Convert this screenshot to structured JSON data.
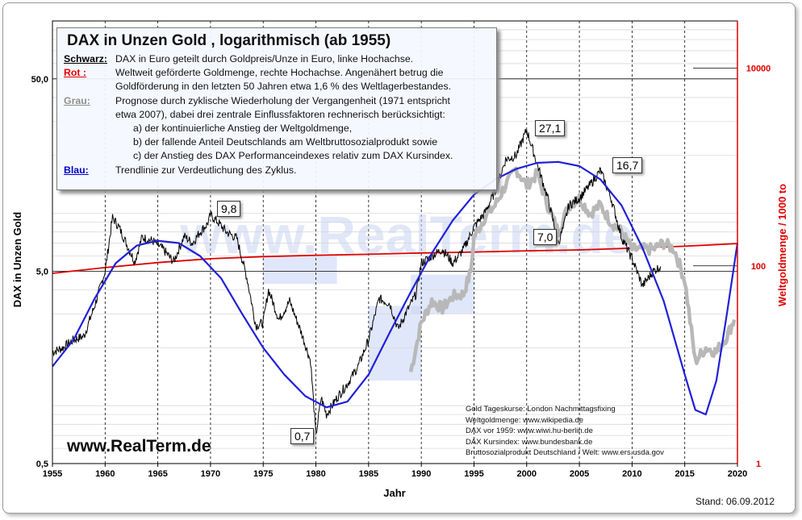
{
  "chart_data": {
    "type": "line",
    "title": "DAX in Unzen Gold , logarithmisch  (ab 1955)",
    "xlabel": "Jahr",
    "ylabel_left": "DAX in Unzen Gold",
    "ylabel_right": "Weltgoldmenge / 1000 to",
    "xlim": [
      1955,
      2020
    ],
    "x_ticks": [
      "1955",
      "1960",
      "1965",
      "1970",
      "1975",
      "1980",
      "1985",
      "1990",
      "1995",
      "2000",
      "2005",
      "2010",
      "2015",
      "2020"
    ],
    "y_left_scale": "log",
    "y_left_lim": [
      0.5,
      100
    ],
    "y_left_ticks": [
      "50,0",
      "5,0",
      "0,5"
    ],
    "y_right_scale": "log",
    "y_right_lim": [
      1,
      30000
    ],
    "y_right_ticks": [
      "10000",
      "100",
      "1"
    ],
    "grid": true,
    "series": [
      {
        "key": "black",
        "color": "#000000",
        "points": [
          [
            1955,
            1.9
          ],
          [
            1956,
            2.0
          ],
          [
            1957,
            2.2
          ],
          [
            1958,
            2.3
          ],
          [
            1959,
            3.3
          ],
          [
            1960,
            5.0
          ],
          [
            1960.7,
            9.5
          ],
          [
            1961.3,
            8.5
          ],
          [
            1962,
            7.0
          ],
          [
            1962.8,
            5.6
          ],
          [
            1963.5,
            7.5
          ],
          [
            1964.5,
            7.2
          ],
          [
            1965.5,
            6.5
          ],
          [
            1966.5,
            5.6
          ],
          [
            1967.5,
            7.6
          ],
          [
            1968.3,
            7.0
          ],
          [
            1969,
            8.0
          ],
          [
            1969.7,
            8.8
          ],
          [
            1970,
            9.8
          ],
          [
            1970.7,
            9.0
          ],
          [
            1971.5,
            8.0
          ],
          [
            1972.5,
            7.4
          ],
          [
            1973.5,
            4.5
          ],
          [
            1974.3,
            2.6
          ],
          [
            1975,
            2.7
          ],
          [
            1975.5,
            4.0
          ],
          [
            1976.5,
            2.8
          ],
          [
            1977.5,
            3.5
          ],
          [
            1978.5,
            2.5
          ],
          [
            1979.5,
            1.7
          ],
          [
            1980,
            0.7
          ],
          [
            1980.5,
            1.1
          ],
          [
            1981,
            0.9
          ],
          [
            1982,
            1.1
          ],
          [
            1983,
            1.3
          ],
          [
            1984,
            1.6
          ],
          [
            1985,
            2.2
          ],
          [
            1986,
            3.6
          ],
          [
            1987,
            3.4
          ],
          [
            1987.8,
            2.5
          ],
          [
            1988.5,
            3.0
          ],
          [
            1989.5,
            3.8
          ],
          [
            1990,
            5.5
          ],
          [
            1991,
            6.0
          ],
          [
            1992,
            6.5
          ],
          [
            1993,
            5.5
          ],
          [
            1994,
            6.5
          ],
          [
            1995,
            8.5
          ],
          [
            1996,
            10
          ],
          [
            1997,
            13
          ],
          [
            1998,
            19
          ],
          [
            1999,
            20
          ],
          [
            2000,
            27.1
          ],
          [
            2001,
            18
          ],
          [
            2002,
            12
          ],
          [
            2003,
            7.0
          ],
          [
            2003.5,
            8.5
          ],
          [
            2004,
            11
          ],
          [
            2005,
            12
          ],
          [
            2006,
            14
          ],
          [
            2007,
            16.7
          ],
          [
            2008,
            12
          ],
          [
            2009,
            7.5
          ],
          [
            2010,
            5.8
          ],
          [
            2011,
            4.2
          ],
          [
            2012,
            5.0
          ],
          [
            2012.7,
            5.3
          ]
        ]
      },
      {
        "key": "grey",
        "color": "#b8b8b8",
        "points": [
          [
            1989,
            1.5
          ],
          [
            1990,
            2.7
          ],
          [
            1991,
            3.5
          ],
          [
            1992,
            3.2
          ],
          [
            1993,
            3.7
          ],
          [
            1994,
            3.8
          ],
          [
            1994.7,
            5.0
          ],
          [
            1995,
            7.5
          ],
          [
            1996,
            9.5
          ],
          [
            1997,
            11
          ],
          [
            1998,
            14
          ],
          [
            1999,
            17
          ],
          [
            2000,
            14
          ],
          [
            2001,
            16
          ],
          [
            2002,
            11
          ],
          [
            2003,
            8
          ],
          [
            2004,
            11
          ],
          [
            2005,
            12
          ],
          [
            2006,
            10
          ],
          [
            2007,
            11
          ],
          [
            2008,
            9
          ],
          [
            2009,
            8
          ],
          [
            2010,
            6.5
          ],
          [
            2011,
            6.5
          ],
          [
            2012,
            6.5
          ],
          [
            2013,
            7.0
          ],
          [
            2014,
            6.5
          ],
          [
            2015,
            4.5
          ],
          [
            2016,
            1.7
          ],
          [
            2017,
            2.0
          ],
          [
            2018,
            1.9
          ],
          [
            2019,
            2.3
          ],
          [
            2019.7,
            2.8
          ]
        ]
      },
      {
        "key": "blue",
        "color": "#2020d8",
        "points": [
          [
            1955,
            1.6
          ],
          [
            1957,
            2.2
          ],
          [
            1959,
            3.6
          ],
          [
            1961,
            5.5
          ],
          [
            1963,
            6.8
          ],
          [
            1965,
            7.2
          ],
          [
            1967,
            7.0
          ],
          [
            1969,
            6.0
          ],
          [
            1971,
            4.6
          ],
          [
            1973,
            3.0
          ],
          [
            1975,
            2.0
          ],
          [
            1977,
            1.45
          ],
          [
            1979,
            1.12
          ],
          [
            1981,
            0.98
          ],
          [
            1983,
            1.05
          ],
          [
            1985,
            1.45
          ],
          [
            1987,
            2.4
          ],
          [
            1989,
            3.9
          ],
          [
            1991,
            6.2
          ],
          [
            1993,
            9.2
          ],
          [
            1995,
            12.5
          ],
          [
            1997,
            15
          ],
          [
            1999,
            17
          ],
          [
            2001,
            18.3
          ],
          [
            2003,
            18.5
          ],
          [
            2005,
            17.6
          ],
          [
            2007,
            15
          ],
          [
            2009,
            11
          ],
          [
            2011,
            6.6
          ],
          [
            2013,
            3.5
          ],
          [
            2015,
            1.45
          ],
          [
            2016,
            0.95
          ],
          [
            2017,
            0.9
          ],
          [
            2018,
            1.35
          ],
          [
            2019,
            3.0
          ],
          [
            2020,
            7.0
          ]
        ]
      },
      {
        "key": "red",
        "color": "#e00000",
        "axis": "right",
        "points": [
          [
            1955,
            84
          ],
          [
            1960,
            96
          ],
          [
            1965,
            108
          ],
          [
            1970,
            118
          ],
          [
            1975,
            124
          ],
          [
            1980,
            128
          ],
          [
            1985,
            131
          ],
          [
            1990,
            135
          ],
          [
            1995,
            138
          ],
          [
            2000,
            142
          ],
          [
            2005,
            145
          ],
          [
            2010,
            151
          ],
          [
            2015,
            158
          ],
          [
            2020,
            168
          ]
        ]
      }
    ],
    "callouts": [
      {
        "label": "9,8",
        "x": 1970,
        "y": 9.8
      },
      {
        "label": "0,7",
        "x": 1980,
        "y": 0.7
      },
      {
        "label": "27,1",
        "x": 2000,
        "y": 27.1
      },
      {
        "label": "7,0",
        "x": 2003,
        "y": 7.0
      },
      {
        "label": "16,7",
        "x": 2007,
        "y": 16.7
      }
    ]
  },
  "legend": {
    "title": "DAX in Unzen Gold , logarithmisch  (ab 1955)",
    "black_key": "Schwarz:",
    "black_text": "DAX in Euro geteilt durch Goldpreis/Unze in Euro, linke Hochachse.",
    "red_key": "Rot :",
    "red_text1": "Weltweit geförderte Goldmenge, rechte Hochachse. Angenähert betrug die",
    "red_text2": "Goldförderung in den letzten 50 Jahren etwa  1,6 %  des Weltlagerbestandes.",
    "grey_key": "Grau:",
    "grey_text1": "Prognose durch zyklische Wiederholung der Vergangenheit (1971 entspricht",
    "grey_text2": "etwa 2007),   dabei drei zentrale Einflussfaktoren rechnerisch berücksichtigt:",
    "grey_a": "a) der kontinuierliche Anstieg der Weltgoldmenge,",
    "grey_b": "b) der fallende Anteil Deutschlands am Weltbruttosozialprodukt sowie",
    "grey_c": "c) der Anstieg des DAX Performanceindexes relativ zum DAX Kursindex.",
    "blue_key": "Blau:",
    "blue_text": "Trendlinie zur Verdeutlichung des Zyklus."
  },
  "sources": [
    "Gold Tageskurse: London Nachmittagsfixing",
    "Weltgoldmenge: www.wikipedia.de",
    "DAX vor 1959:  www.wiwi.hu-berlin.de",
    "DAX Kursindex: www.bundesbank.de",
    "Bruttosozialprodukt Deutschland / Welt: www.ers.usda.gov"
  ],
  "watermark": "www.RealTerm.de",
  "brand": "www.RealTerm.de",
  "stand": "Stand:  06.09.2012",
  "colors": {
    "black": "#000000",
    "red": "#e00000",
    "grey": "#b8b8b8",
    "blue": "#2020d8",
    "band": "#c7d3f5"
  }
}
